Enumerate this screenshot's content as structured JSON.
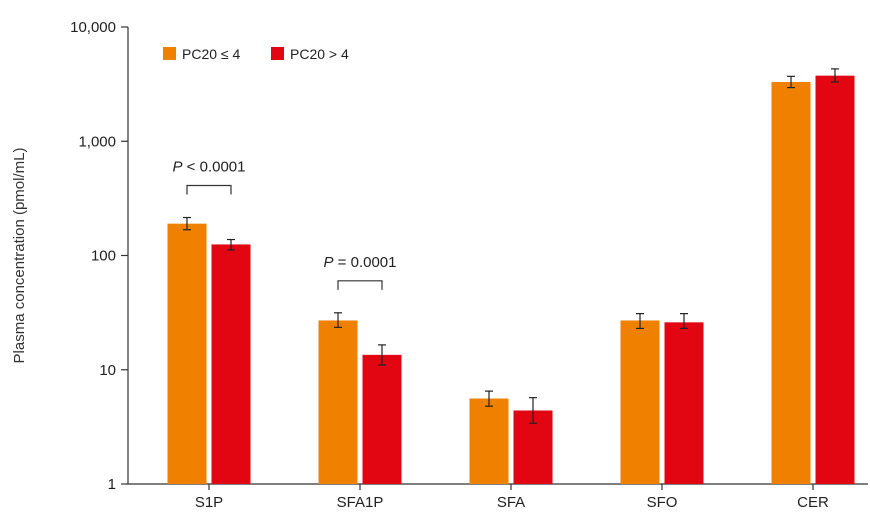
{
  "chart_data": {
    "type": "bar",
    "title": "",
    "xlabel": "",
    "ylabel": "Plasma concentration (pmol/mL)",
    "yscale": "log",
    "ylim": [
      1,
      10000
    ],
    "yticks": [
      1,
      10,
      100,
      1000,
      10000
    ],
    "ytick_labels": [
      "1",
      "10",
      "100",
      "1,000",
      "10,000"
    ],
    "categories": [
      "S1P",
      "SFA1P",
      "SFA",
      "SFO",
      "CER"
    ],
    "grid": false,
    "legend_position": "top-left",
    "series": [
      {
        "name": "PC20 ≤ 4",
        "color": "#f08100",
        "values": [
          190,
          27,
          5.6,
          27,
          3300
        ],
        "err_low": [
          168,
          23.5,
          4.8,
          23,
          2950
        ],
        "err_high": [
          215,
          31.5,
          6.5,
          31,
          3700
        ]
      },
      {
        "name": "PC20 > 4",
        "color": "#e20613",
        "values": [
          125,
          13.5,
          4.4,
          26,
          3750
        ],
        "err_low": [
          112,
          11,
          3.4,
          23,
          3300
        ],
        "err_high": [
          138,
          16.5,
          5.7,
          31,
          4300
        ]
      }
    ],
    "annotations": [
      {
        "category": "S1P",
        "italic": "P",
        "text": " < 0.0001"
      },
      {
        "category": "SFA1P",
        "italic": "P",
        "text": " = 0.0001"
      }
    ]
  }
}
